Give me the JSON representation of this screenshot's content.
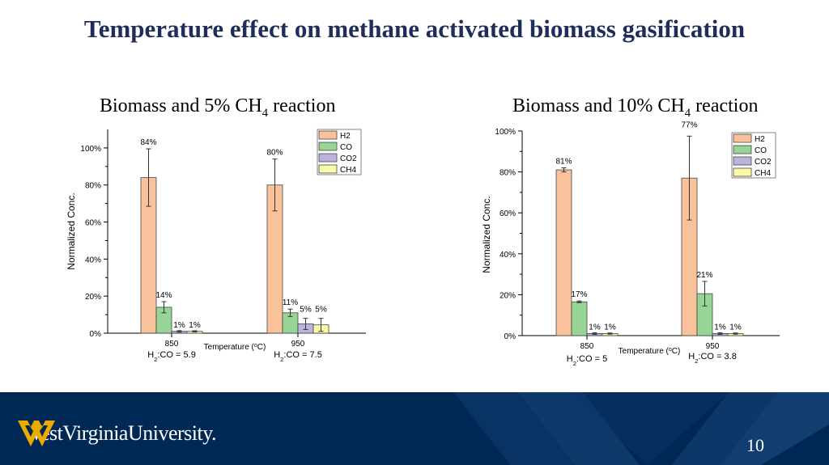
{
  "slide": {
    "title": "Temperature effect on methane activated biomass gasification",
    "page_number": "10",
    "logo_text": "WestVirginiaUniversity."
  },
  "colors": {
    "H2": "#f9c29a",
    "CO": "#96d596",
    "CO2": "#bcb2db",
    "CH4": "#fbfaa8",
    "title": "#1f2d5a",
    "footer": "#002855",
    "logo_gold": "#eaaa00"
  },
  "chart_data": [
    {
      "type": "bar",
      "title_prefix": "Biomass and  5% CH",
      "title_sub": "4",
      "title_suffix": " reaction",
      "xlabel": "Temperature (oC)",
      "ylabel": "Normalized Conc.",
      "ylim": [
        0,
        1.1
      ],
      "yticks": [
        0,
        0.2,
        0.4,
        0.6,
        0.8,
        1.0
      ],
      "ytick_labels": [
        "0%",
        "20%",
        "40%",
        "60%",
        "80%",
        "100%"
      ],
      "categories": [
        "850",
        "950"
      ],
      "category_notes": [
        "H2:CO = 5.9",
        "H2:CO = 7.5"
      ],
      "legend": "top-right",
      "series": [
        {
          "name": "H2",
          "values": [
            0.84,
            0.8
          ],
          "errors": [
            0.155,
            0.14
          ],
          "labels": [
            "84%",
            "80%"
          ]
        },
        {
          "name": "CO",
          "values": [
            0.14,
            0.11
          ],
          "errors": [
            0.03,
            0.02
          ],
          "labels": [
            "14%",
            "11%"
          ]
        },
        {
          "name": "CO2",
          "values": [
            0.01,
            0.05
          ],
          "errors": [
            0.004,
            0.03
          ],
          "labels": [
            "1%",
            "5%"
          ]
        },
        {
          "name": "CH4",
          "values": [
            0.01,
            0.045
          ],
          "errors": [
            0.003,
            0.035
          ],
          "labels": [
            "1%",
            "5%"
          ]
        }
      ]
    },
    {
      "type": "bar",
      "title_prefix": "Biomass and  10% CH",
      "title_sub": "4",
      "title_suffix": " reaction",
      "xlabel": "Temperature (oC)",
      "ylabel": "Normalized Conc.",
      "ylim": [
        0,
        1.0
      ],
      "yticks": [
        0,
        0.2,
        0.4,
        0.6,
        0.8,
        1.0
      ],
      "ytick_labels": [
        "0%",
        "20%",
        "40%",
        "60%",
        "80%",
        "100%"
      ],
      "categories": [
        "850",
        "950"
      ],
      "category_notes": [
        "H2:CO = 5",
        "H2:CO = 3.8"
      ],
      "legend": "top-right",
      "series": [
        {
          "name": "H2",
          "values": [
            0.81,
            0.77
          ],
          "errors": [
            0.01,
            0.205
          ],
          "labels": [
            "81%",
            "77%"
          ]
        },
        {
          "name": "CO",
          "values": [
            0.165,
            0.205
          ],
          "errors": [
            0.004,
            0.06
          ],
          "labels": [
            "17%",
            "21%"
          ]
        },
        {
          "name": "CO2",
          "values": [
            0.01,
            0.01
          ],
          "errors": [
            0.004,
            0.004
          ],
          "labels": [
            "1%",
            "1%"
          ]
        },
        {
          "name": "CH4",
          "values": [
            0.01,
            0.01
          ],
          "errors": [
            0.003,
            0.003
          ],
          "labels": [
            "1%",
            "1%"
          ]
        }
      ]
    }
  ]
}
